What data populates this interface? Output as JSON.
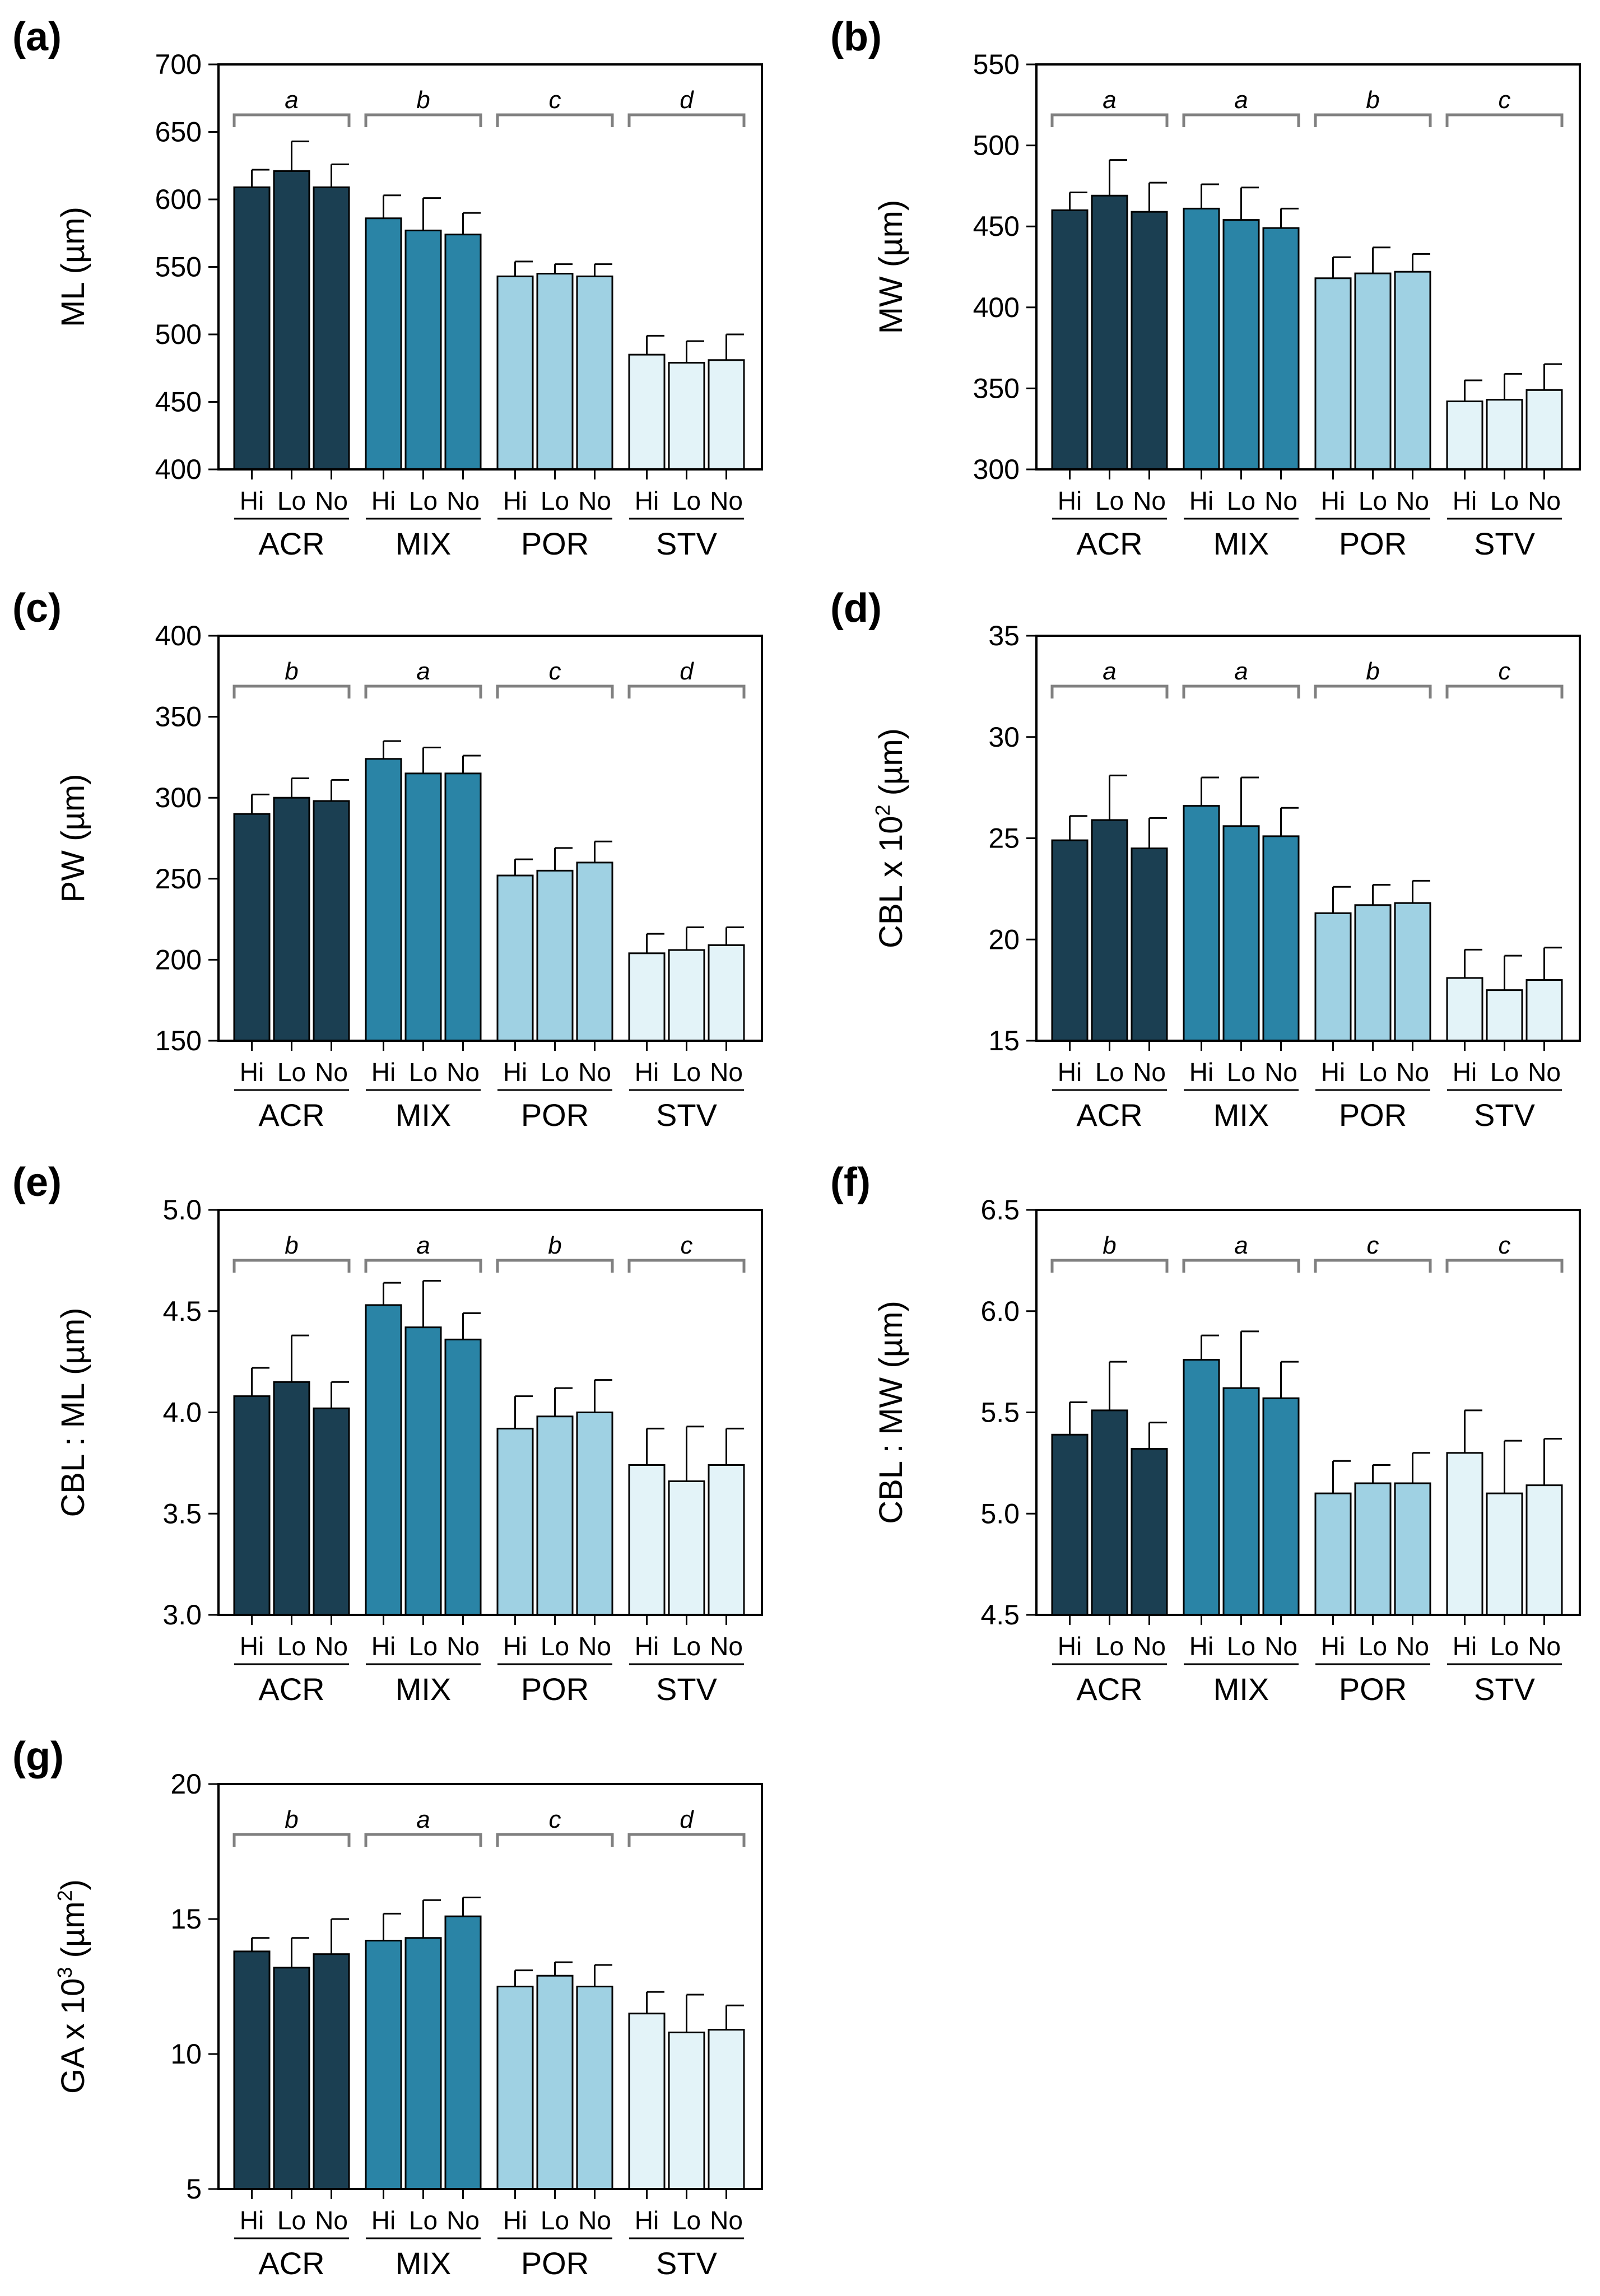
{
  "figure": {
    "groups": [
      "ACR",
      "MIX",
      "POR",
      "STV"
    ],
    "treatments": [
      "Hi",
      "Lo",
      "No"
    ],
    "group_colors": [
      "#1b3f52",
      "#2a84a6",
      "#9fd1e3",
      "#e3f3f8"
    ],
    "bracket_color": "#808080"
  },
  "chart_data": [
    {
      "id": "a",
      "letter": "(a)",
      "type": "bar",
      "ylabel": "ML (µm)",
      "ylabel_main": "ML (µm)",
      "ylabel_sup": "",
      "ylabel_tail": "",
      "ylim": [
        400,
        700
      ],
      "yticks": [
        400,
        450,
        500,
        550,
        600,
        650,
        700
      ],
      "categories": [
        "ACR",
        "MIX",
        "POR",
        "STV"
      ],
      "significance": [
        "a",
        "b",
        "c",
        "d"
      ],
      "series": [
        {
          "name": "Hi",
          "values": [
            609,
            586,
            543,
            485
          ],
          "errors": [
            13,
            17,
            11,
            14
          ]
        },
        {
          "name": "Lo",
          "values": [
            621,
            577,
            545,
            479
          ],
          "errors": [
            22,
            24,
            7,
            16
          ]
        },
        {
          "name": "No",
          "values": [
            609,
            574,
            543,
            481
          ],
          "errors": [
            17,
            16,
            9,
            19
          ]
        }
      ]
    },
    {
      "id": "b",
      "letter": "(b)",
      "type": "bar",
      "ylabel": "MW (µm)",
      "ylabel_main": "MW (µm)",
      "ylabel_sup": "",
      "ylabel_tail": "",
      "ylim": [
        300,
        550
      ],
      "yticks": [
        300,
        350,
        400,
        450,
        500,
        550
      ],
      "categories": [
        "ACR",
        "MIX",
        "POR",
        "STV"
      ],
      "significance": [
        "a",
        "a",
        "b",
        "c"
      ],
      "series": [
        {
          "name": "Hi",
          "values": [
            460,
            461,
            418,
            342
          ],
          "errors": [
            11,
            15,
            13,
            13
          ]
        },
        {
          "name": "Lo",
          "values": [
            469,
            454,
            421,
            343
          ],
          "errors": [
            22,
            20,
            16,
            16
          ]
        },
        {
          "name": "No",
          "values": [
            459,
            449,
            422,
            349
          ],
          "errors": [
            18,
            12,
            11,
            16
          ]
        }
      ]
    },
    {
      "id": "c",
      "letter": "(c)",
      "type": "bar",
      "ylabel": "PW (µm)",
      "ylabel_main": "PW (µm)",
      "ylabel_sup": "",
      "ylabel_tail": "",
      "ylim": [
        150,
        400
      ],
      "yticks": [
        150,
        200,
        250,
        300,
        350,
        400
      ],
      "categories": [
        "ACR",
        "MIX",
        "POR",
        "STV"
      ],
      "significance": [
        "b",
        "a",
        "c",
        "d"
      ],
      "series": [
        {
          "name": "Hi",
          "values": [
            290,
            324,
            252,
            204
          ],
          "errors": [
            12,
            11,
            10,
            12
          ]
        },
        {
          "name": "Lo",
          "values": [
            300,
            315,
            255,
            206
          ],
          "errors": [
            12,
            16,
            14,
            14
          ]
        },
        {
          "name": "No",
          "values": [
            298,
            315,
            260,
            209
          ],
          "errors": [
            13,
            11,
            13,
            11
          ]
        }
      ]
    },
    {
      "id": "d",
      "letter": "(d)",
      "type": "bar",
      "ylabel": "CBL x 10² (µm)",
      "ylabel_main": "CBL x 10",
      "ylabel_sup": "2",
      "ylabel_tail": " (µm)",
      "ylim": [
        15,
        35
      ],
      "yticks": [
        15,
        20,
        25,
        30,
        35
      ],
      "categories": [
        "ACR",
        "MIX",
        "POR",
        "STV"
      ],
      "significance": [
        "a",
        "a",
        "b",
        "c"
      ],
      "series": [
        {
          "name": "Hi",
          "values": [
            24.9,
            26.6,
            21.3,
            18.1
          ],
          "errors": [
            1.2,
            1.4,
            1.3,
            1.4
          ]
        },
        {
          "name": "Lo",
          "values": [
            25.9,
            25.6,
            21.7,
            17.5
          ],
          "errors": [
            2.2,
            2.4,
            1.0,
            1.7
          ]
        },
        {
          "name": "No",
          "values": [
            24.5,
            25.1,
            21.8,
            18.0
          ],
          "errors": [
            1.5,
            1.4,
            1.1,
            1.6
          ]
        }
      ]
    },
    {
      "id": "e",
      "letter": "(e)",
      "type": "bar",
      "ylabel": "CBL : ML (µm)",
      "ylabel_main": "CBL : ML (µm)",
      "ylabel_sup": "",
      "ylabel_tail": "",
      "ylim": [
        3.0,
        5.0
      ],
      "yticks": [
        3.0,
        3.5,
        4.0,
        4.5,
        5.0
      ],
      "categories": [
        "ACR",
        "MIX",
        "POR",
        "STV"
      ],
      "significance": [
        "b",
        "a",
        "b",
        "c"
      ],
      "series": [
        {
          "name": "Hi",
          "values": [
            4.08,
            4.53,
            3.92,
            3.74
          ],
          "errors": [
            0.14,
            0.11,
            0.16,
            0.18
          ]
        },
        {
          "name": "Lo",
          "values": [
            4.15,
            4.42,
            3.98,
            3.66
          ],
          "errors": [
            0.23,
            0.23,
            0.14,
            0.27
          ]
        },
        {
          "name": "No",
          "values": [
            4.02,
            4.36,
            4.0,
            3.74
          ],
          "errors": [
            0.13,
            0.13,
            0.16,
            0.18
          ]
        }
      ]
    },
    {
      "id": "f",
      "letter": "(f)",
      "type": "bar",
      "ylabel": "CBL : MW (µm)",
      "ylabel_main": "CBL : MW (µm)",
      "ylabel_sup": "",
      "ylabel_tail": "",
      "ylim": [
        4.5,
        6.5
      ],
      "yticks": [
        4.5,
        5.0,
        5.5,
        6.0,
        6.5
      ],
      "categories": [
        "ACR",
        "MIX",
        "POR",
        "STV"
      ],
      "significance": [
        "b",
        "a",
        "c",
        "c"
      ],
      "series": [
        {
          "name": "Hi",
          "values": [
            5.39,
            5.76,
            5.1,
            5.3
          ],
          "errors": [
            0.16,
            0.12,
            0.16,
            0.21
          ]
        },
        {
          "name": "Lo",
          "values": [
            5.51,
            5.62,
            5.15,
            5.1
          ],
          "errors": [
            0.24,
            0.28,
            0.09,
            0.26
          ]
        },
        {
          "name": "No",
          "values": [
            5.32,
            5.57,
            5.15,
            5.14
          ],
          "errors": [
            0.13,
            0.18,
            0.15,
            0.23
          ]
        }
      ]
    },
    {
      "id": "g",
      "letter": "(g)",
      "type": "bar",
      "ylabel": "GA x 10³ (µm²)",
      "ylabel_main": "GA x 10",
      "ylabel_sup": "3",
      "ylabel_tail": " (µm",
      "ylabel_sup2": "2",
      "ylabel_tail2": ")",
      "ylim": [
        5,
        20
      ],
      "yticks": [
        5,
        10,
        15,
        20
      ],
      "categories": [
        "ACR",
        "MIX",
        "POR",
        "STV"
      ],
      "significance": [
        "b",
        "a",
        "c",
        "d"
      ],
      "series": [
        {
          "name": "Hi",
          "values": [
            13.8,
            14.2,
            12.5,
            11.5
          ],
          "errors": [
            0.5,
            1.0,
            0.6,
            0.8
          ]
        },
        {
          "name": "Lo",
          "values": [
            13.2,
            14.3,
            12.9,
            10.8
          ],
          "errors": [
            1.1,
            1.4,
            0.5,
            1.4
          ]
        },
        {
          "name": "No",
          "values": [
            13.7,
            15.1,
            12.5,
            10.9
          ],
          "errors": [
            1.3,
            0.7,
            0.8,
            0.9
          ]
        }
      ]
    }
  ]
}
